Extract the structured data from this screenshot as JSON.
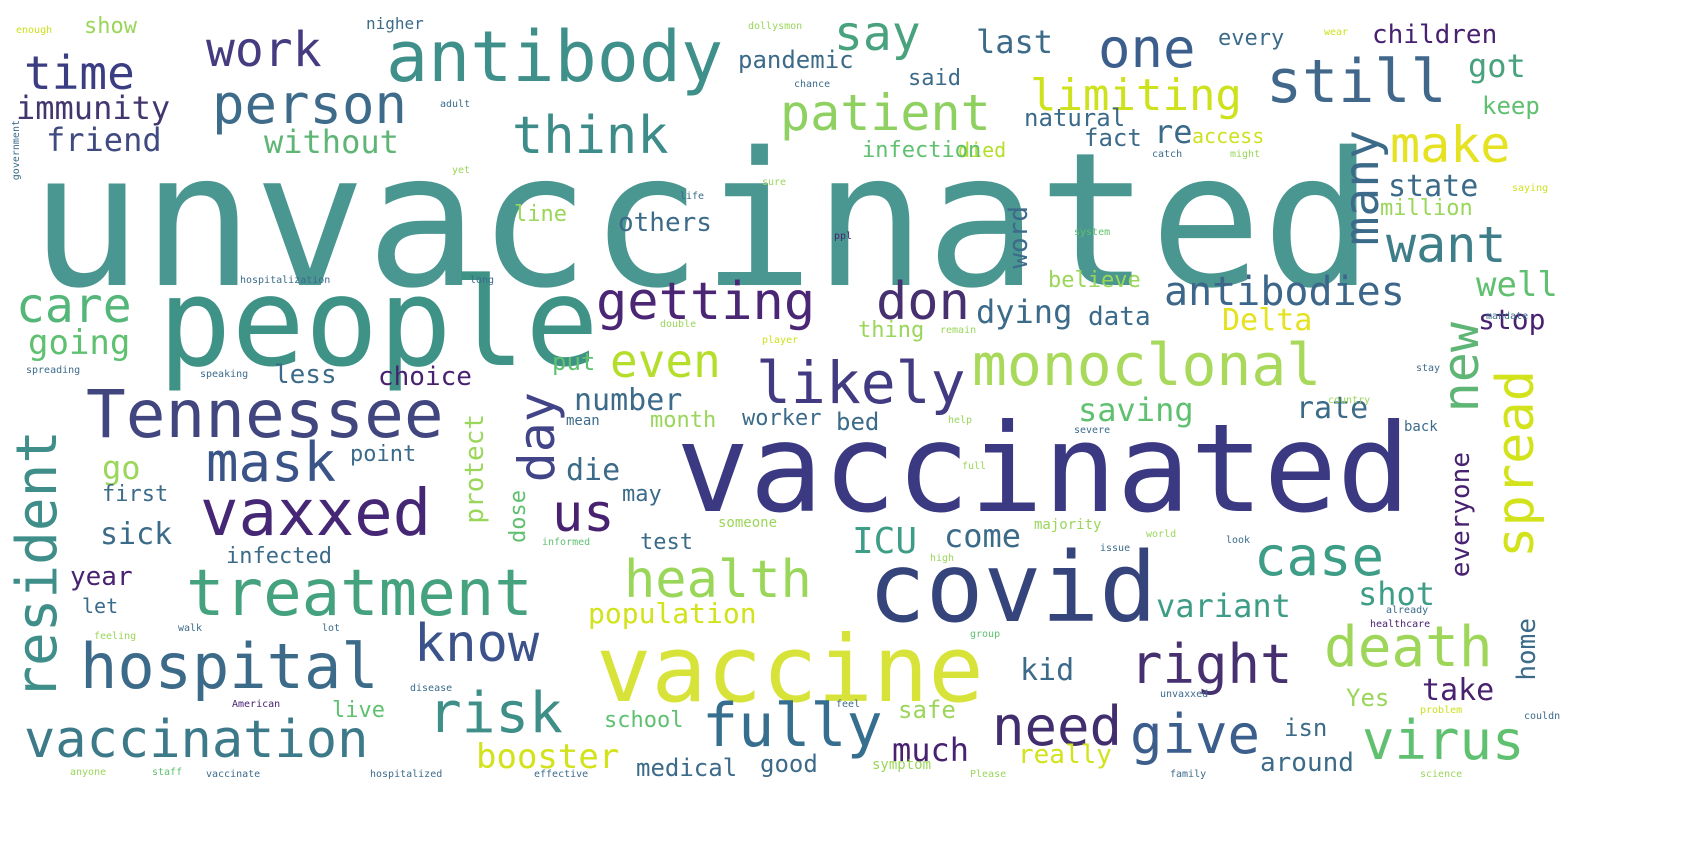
{
  "words": [
    {
      "text": "unvaccinated",
      "color": "#4a9690"
    },
    {
      "text": "people",
      "color": "#3e9386"
    },
    {
      "text": "vaccinated",
      "color": "#3b3982"
    },
    {
      "text": "covid",
      "color": "#35457c"
    },
    {
      "text": "vaccine",
      "color": "#d8e33a"
    },
    {
      "text": "antibody",
      "color": "#3f8f8a"
    },
    {
      "text": "Tennessee",
      "color": "#41477e"
    },
    {
      "text": "treatment",
      "color": "#45a27f"
    },
    {
      "text": "hospital",
      "color": "#3c6b8a"
    },
    {
      "text": "vaccination",
      "color": "#3d7a89"
    },
    {
      "text": "monoclonal",
      "color": "#a8d95b"
    },
    {
      "text": "vaxxed",
      "color": "#452775"
    },
    {
      "text": "person",
      "color": "#3e6b8a"
    },
    {
      "text": "getting",
      "color": "#4a2675"
    },
    {
      "text": "don",
      "color": "#47306f"
    },
    {
      "text": "likely",
      "color": "#433b82"
    },
    {
      "text": "fully",
      "color": "#356e8e"
    },
    {
      "text": "right",
      "color": "#47306f"
    },
    {
      "text": "risk",
      "color": "#3e8f88"
    },
    {
      "text": "patient",
      "color": "#8fd161"
    },
    {
      "text": "still",
      "color": "#41678b"
    },
    {
      "text": "think",
      "color": "#3d8c8a"
    },
    {
      "text": "work",
      "color": "#443b80"
    },
    {
      "text": "time",
      "color": "#3a3d82"
    },
    {
      "text": "say",
      "color": "#48a27e"
    },
    {
      "text": "one",
      "color": "#3b5e8c"
    },
    {
      "text": "mask",
      "color": "#3a5488"
    },
    {
      "text": "health",
      "color": "#9ad65a"
    },
    {
      "text": "case",
      "color": "#3e9d86"
    },
    {
      "text": "death",
      "color": "#9ed65a"
    },
    {
      "text": "virus",
      "color": "#5fc070"
    },
    {
      "text": "need",
      "color": "#422e6f"
    },
    {
      "text": "give",
      "color": "#3b5e8c"
    },
    {
      "text": "know",
      "color": "#3b528a"
    },
    {
      "text": "even",
      "color": "#b5de2b"
    },
    {
      "text": "make",
      "color": "#e4e221"
    },
    {
      "text": "want",
      "color": "#3d7e89"
    },
    {
      "text": "antibodies",
      "color": "#3c678a"
    },
    {
      "text": "care",
      "color": "#54b679"
    },
    {
      "text": "us",
      "color": "#482270"
    },
    {
      "text": "resident",
      "color": "#3f8e89"
    },
    {
      "text": "new",
      "color": "#5fb575"
    },
    {
      "text": "spread",
      "color": "#d2e21b"
    },
    {
      "text": "day",
      "color": "#414487"
    },
    {
      "text": "many",
      "color": "#3c6b8a"
    },
    {
      "text": "immunity",
      "color": "#43366f"
    },
    {
      "text": "friend",
      "color": "#3f4a80"
    },
    {
      "text": "without",
      "color": "#5fb575"
    },
    {
      "text": "limiting",
      "color": "#cde11d"
    },
    {
      "text": "last",
      "color": "#3c6b8a"
    },
    {
      "text": "pandemic",
      "color": "#3c6b8a"
    },
    {
      "text": "said",
      "color": "#3c6b8a"
    },
    {
      "text": "natural",
      "color": "#3c6b8a"
    },
    {
      "text": "fact",
      "color": "#3c6b8a"
    },
    {
      "text": "re",
      "color": "#3c6b8a"
    },
    {
      "text": "access",
      "color": "#cde11d"
    },
    {
      "text": "died",
      "color": "#b5de2b"
    },
    {
      "text": "infection",
      "color": "#5fc070"
    },
    {
      "text": "state",
      "color": "#3c6b8a"
    },
    {
      "text": "million",
      "color": "#9ad65a"
    },
    {
      "text": "got",
      "color": "#48a27e"
    },
    {
      "text": "keep",
      "color": "#5fc070"
    },
    {
      "text": "every",
      "color": "#3c6b8a"
    },
    {
      "text": "children",
      "color": "#482270"
    },
    {
      "text": "well",
      "color": "#5fc070"
    },
    {
      "text": "stop",
      "color": "#482270"
    },
    {
      "text": "Delta",
      "color": "#e4e221"
    },
    {
      "text": "dying",
      "color": "#3c6b8a"
    },
    {
      "text": "data",
      "color": "#3c6b8a"
    },
    {
      "text": "word",
      "color": "#3c6b8a"
    },
    {
      "text": "believe",
      "color": "#9ad65a"
    },
    {
      "text": "line",
      "color": "#9ad65a"
    },
    {
      "text": "others",
      "color": "#3c6b8a"
    },
    {
      "text": "thing",
      "color": "#9ad65a"
    },
    {
      "text": "going",
      "color": "#5fc070"
    },
    {
      "text": "less",
      "color": "#3c6b8a"
    },
    {
      "text": "choice",
      "color": "#482270"
    },
    {
      "text": "put",
      "color": "#5fc070"
    },
    {
      "text": "number",
      "color": "#3c6b8a"
    },
    {
      "text": "saving",
      "color": "#5fc070"
    },
    {
      "text": "rate",
      "color": "#3c6b8a"
    },
    {
      "text": "go",
      "color": "#9ad65a"
    },
    {
      "text": "die",
      "color": "#3c6b8a"
    },
    {
      "text": "month",
      "color": "#9ad65a"
    },
    {
      "text": "worker",
      "color": "#3c6b8a"
    },
    {
      "text": "bed",
      "color": "#3c6b8a"
    },
    {
      "text": "point",
      "color": "#3c6b8a"
    },
    {
      "text": "protect",
      "color": "#9ad65a"
    },
    {
      "text": "first",
      "color": "#3c6b8a"
    },
    {
      "text": "sick",
      "color": "#3c6b8a"
    },
    {
      "text": "infected",
      "color": "#3c6b8a"
    },
    {
      "text": "year",
      "color": "#482270"
    },
    {
      "text": "let",
      "color": "#3c6b8a"
    },
    {
      "text": "may",
      "color": "#3c6b8a"
    },
    {
      "text": "dose",
      "color": "#5fc070"
    },
    {
      "text": "test",
      "color": "#3c6b8a"
    },
    {
      "text": "ICU",
      "color": "#3e9d86"
    },
    {
      "text": "come",
      "color": "#3c6b8a"
    },
    {
      "text": "population",
      "color": "#d2e21b"
    },
    {
      "text": "variant",
      "color": "#3e9d86"
    },
    {
      "text": "shot",
      "color": "#3e9d86"
    },
    {
      "text": "everyone",
      "color": "#482270"
    },
    {
      "text": "kid",
      "color": "#3c6b8a"
    },
    {
      "text": "take",
      "color": "#482270"
    },
    {
      "text": "home",
      "color": "#3c6b8a"
    },
    {
      "text": "Yes",
      "color": "#9ad65a"
    },
    {
      "text": "school",
      "color": "#5fc070"
    },
    {
      "text": "safe",
      "color": "#9ad65a"
    },
    {
      "text": "isn",
      "color": "#3c6b8a"
    },
    {
      "text": "much",
      "color": "#482270"
    },
    {
      "text": "booster",
      "color": "#d2e21b"
    },
    {
      "text": "live",
      "color": "#5fc070"
    },
    {
      "text": "medical",
      "color": "#3c6b8a"
    },
    {
      "text": "good",
      "color": "#3c6b8a"
    },
    {
      "text": "really",
      "color": "#d2e21b"
    },
    {
      "text": "around",
      "color": "#3c6b8a"
    },
    {
      "text": "show",
      "color": "#9ad65a"
    },
    {
      "text": "enough",
      "color": "#cde11d"
    },
    {
      "text": "nigher",
      "color": "#3c6b8a"
    },
    {
      "text": "dollysmon",
      "color": "#9ad65a"
    },
    {
      "text": "chance",
      "color": "#3c6b8a"
    },
    {
      "text": "adult",
      "color": "#3c6b8a"
    },
    {
      "text": "yet",
      "color": "#9ad65a"
    },
    {
      "text": "hospitalization",
      "color": "#3c6b8a"
    },
    {
      "text": "long",
      "color": "#3c6b8a"
    },
    {
      "text": "spreading",
      "color": "#3c6b8a"
    },
    {
      "text": "speaking",
      "color": "#3c6b8a"
    },
    {
      "text": "someone",
      "color": "#9ad65a"
    },
    {
      "text": "majority",
      "color": "#9ad65a"
    },
    {
      "text": "informed",
      "color": "#5fc070"
    },
    {
      "text": "anyone",
      "color": "#9ad65a"
    },
    {
      "text": "staff",
      "color": "#5fc070"
    },
    {
      "text": "vaccinate",
      "color": "#3c6b8a"
    },
    {
      "text": "hospitalized",
      "color": "#3c6b8a"
    },
    {
      "text": "effective",
      "color": "#3c6b8a"
    },
    {
      "text": "symptom",
      "color": "#9ad65a"
    },
    {
      "text": "Please",
      "color": "#9ad65a"
    },
    {
      "text": "family",
      "color": "#3c6b8a"
    },
    {
      "text": "science",
      "color": "#9ad65a"
    },
    {
      "text": "American",
      "color": "#482270"
    },
    {
      "text": "feel",
      "color": "#3c6b8a"
    },
    {
      "text": "unvaxxed",
      "color": "#3c6b8a"
    },
    {
      "text": "couldn",
      "color": "#3c6b8a"
    },
    {
      "text": "healthcare",
      "color": "#482270"
    },
    {
      "text": "group",
      "color": "#5fc070"
    },
    {
      "text": "disease",
      "color": "#3c6b8a"
    },
    {
      "text": "feeling",
      "color": "#9ad65a"
    },
    {
      "text": "walk",
      "color": "#3c6b8a"
    },
    {
      "text": "lot",
      "color": "#3c6b8a"
    },
    {
      "text": "world",
      "color": "#9ad65a"
    },
    {
      "text": "issue",
      "color": "#3c6b8a"
    },
    {
      "text": "look",
      "color": "#3c6b8a"
    },
    {
      "text": "high",
      "color": "#9ad65a"
    },
    {
      "text": "back",
      "color": "#3c6b8a"
    },
    {
      "text": "full",
      "color": "#9ad65a"
    },
    {
      "text": "help",
      "color": "#9ad65a"
    },
    {
      "text": "severe",
      "color": "#3c6b8a"
    },
    {
      "text": "country",
      "color": "#9ad65a"
    },
    {
      "text": "stay",
      "color": "#3c6b8a"
    },
    {
      "text": "mandate",
      "color": "#3c6b8a"
    },
    {
      "text": "system",
      "color": "#5fc070"
    },
    {
      "text": "ppl",
      "color": "#482270"
    },
    {
      "text": "life",
      "color": "#3c6b8a"
    },
    {
      "text": "sure",
      "color": "#9ad65a"
    },
    {
      "text": "catch",
      "color": "#3c6b8a"
    },
    {
      "text": "might",
      "color": "#9ad65a"
    },
    {
      "text": "saying",
      "color": "#cde11d"
    },
    {
      "text": "player",
      "color": "#cde11d"
    },
    {
      "text": "remain",
      "color": "#9ad65a"
    },
    {
      "text": "double",
      "color": "#9ad65a"
    },
    {
      "text": "already",
      "color": "#3c6b8a"
    },
    {
      "text": "mean",
      "color": "#3c6b8a"
    },
    {
      "text": "problem",
      "color": "#cde11d"
    },
    {
      "text": "wear",
      "color": "#cde11d"
    },
    {
      "text": "government",
      "color": "#3c6b8a"
    }
  ]
}
